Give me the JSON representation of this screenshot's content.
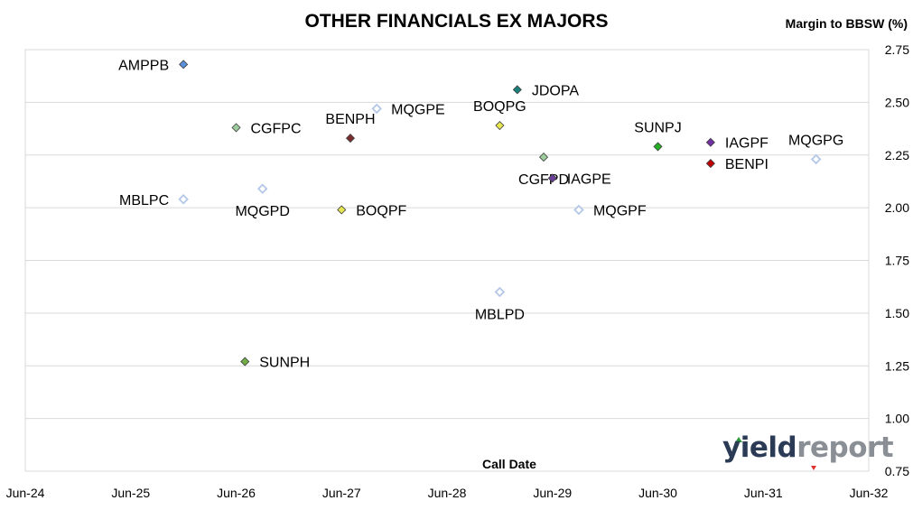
{
  "chart_data": {
    "type": "scatter",
    "title": "OTHER FINANCIALS EX MAJORS",
    "ylabel": "Margin to BBSW (%)",
    "xlabel": "Call Date",
    "x_ticks": [
      "Jun-24",
      "Jun-25",
      "Jun-26",
      "Jun-27",
      "Jun-28",
      "Jun-29",
      "Jun-30",
      "Jun-31",
      "Jun-32"
    ],
    "y_ticks": [
      "2.75",
      "2.50",
      "2.25",
      "2.00",
      "1.75",
      "1.50",
      "1.25",
      "1.00",
      "0.75"
    ],
    "xlim": [
      "Jun-24",
      "Jun-32"
    ],
    "ylim": [
      0.75,
      2.75
    ],
    "grid": "horizontal",
    "points": [
      {
        "label": "AMPPB",
        "x": "Dec-25",
        "y": 2.68,
        "color": "#5b8fd9",
        "filled": true,
        "label_pos": "left"
      },
      {
        "label": "CGFPC",
        "x": "Jun-26",
        "y": 2.38,
        "color": "#9ccb9c",
        "filled": true,
        "label_pos": "right"
      },
      {
        "label": "MBLPC",
        "x": "Dec-25",
        "y": 2.04,
        "color": "#b4c7e7",
        "filled": false,
        "label_pos": "left"
      },
      {
        "label": "MQGPD",
        "x": "Sep-26",
        "y": 2.09,
        "color": "#b4c7e7",
        "filled": false,
        "label_pos": "below"
      },
      {
        "label": "SUNPH",
        "x": "Jul-26",
        "y": 1.27,
        "color": "#70ad47",
        "filled": true,
        "label_pos": "right"
      },
      {
        "label": "BENPH",
        "x": "Jul-27",
        "y": 2.33,
        "color": "#7b2c2c",
        "filled": true,
        "label_pos": "above"
      },
      {
        "label": "BOQPF",
        "x": "Jun-27",
        "y": 1.99,
        "color": "#e7e64f",
        "filled": true,
        "label_pos": "right"
      },
      {
        "label": "MQGPE",
        "x": "Oct-27",
        "y": 2.47,
        "color": "#b4c7e7",
        "filled": false,
        "label_pos": "right"
      },
      {
        "label": "BOQPG",
        "x": "Dec-28",
        "y": 2.39,
        "color": "#e7e64f",
        "filled": true,
        "label_pos": "above"
      },
      {
        "label": "JDOPA",
        "x": "Feb-29",
        "y": 2.56,
        "color": "#1b7f7a",
        "filled": true,
        "label_pos": "right"
      },
      {
        "label": "MBLPD",
        "x": "Dec-28",
        "y": 1.6,
        "color": "#b4c7e7",
        "filled": false,
        "label_pos": "below"
      },
      {
        "label": "CGFPD",
        "x": "May-29",
        "y": 2.24,
        "color": "#9ccb9c",
        "filled": true,
        "label_pos": "below"
      },
      {
        "label": "IAGPE",
        "x": "Jun-29",
        "y": 2.14,
        "color": "#6a3d9a",
        "filled": true,
        "label_pos": "right"
      },
      {
        "label": "MQGPF",
        "x": "Sep-29",
        "y": 1.99,
        "color": "#b4c7e7",
        "filled": false,
        "label_pos": "right"
      },
      {
        "label": "SUNPJ",
        "x": "Jun-30",
        "y": 2.29,
        "color": "#22b022",
        "filled": true,
        "label_pos": "above"
      },
      {
        "label": "IAGPF",
        "x": "Dec-30",
        "y": 2.31,
        "color": "#7030a0",
        "filled": true,
        "label_pos": "right"
      },
      {
        "label": "BENPI",
        "x": "Dec-30",
        "y": 2.21,
        "color": "#c00000",
        "filled": true,
        "label_pos": "right"
      },
      {
        "label": "MQGPG",
        "x": "Dec-31",
        "y": 2.23,
        "color": "#b4c7e7",
        "filled": false,
        "label_pos": "above"
      }
    ]
  },
  "logo": {
    "part1": "yield",
    "part2": "report"
  }
}
